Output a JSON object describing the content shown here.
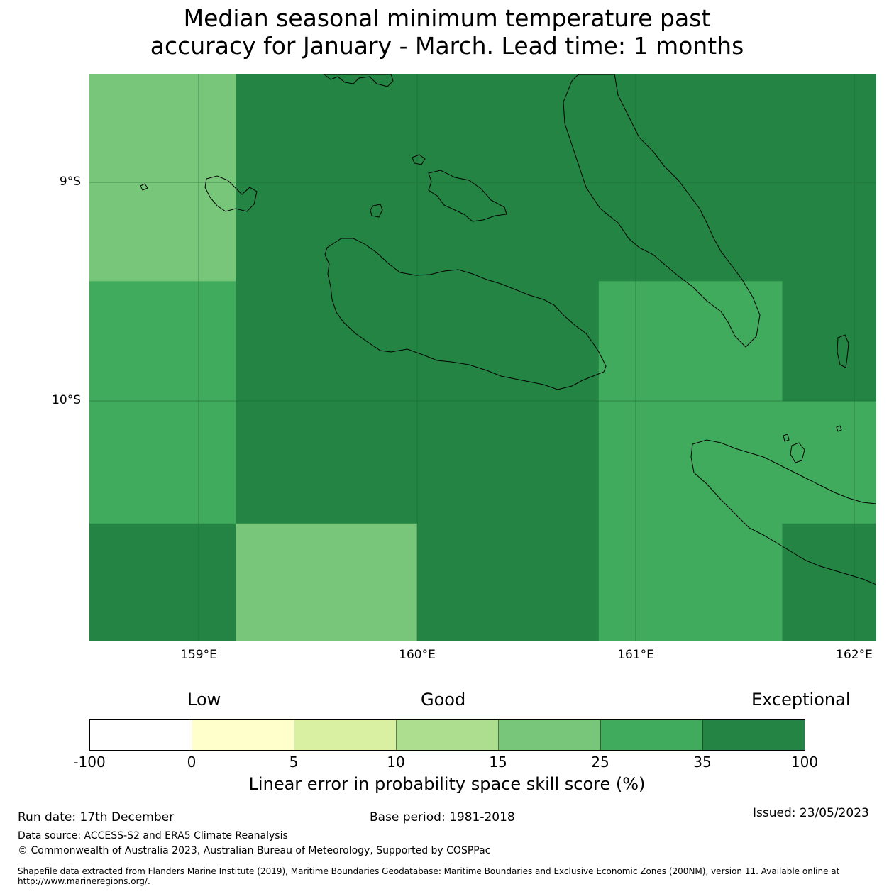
{
  "title": {
    "line1": "Median seasonal minimum temperature past",
    "line2": "accuracy for January - March. Lead time: 1 months"
  },
  "map": {
    "lat_labels": [
      "9°S",
      "10°S"
    ],
    "lon_labels": [
      "159°E",
      "160°E",
      "161°E",
      "162°E"
    ],
    "lon_range": [
      158.5,
      162.1
    ],
    "lat_range": [
      -8.5,
      -11.1
    ],
    "cells": [
      {
        "lon0": 158.5,
        "lon1": 159.17,
        "lat0": -8.5,
        "lat1": -9.45,
        "cls": "15-25"
      },
      {
        "lon0": 158.5,
        "lon1": 159.17,
        "lat0": -9.45,
        "lat1": -10.56,
        "cls": "25-35"
      },
      {
        "lon0": 158.5,
        "lon1": 159.17,
        "lat0": -10.56,
        "lat1": -11.1,
        "cls": "35-100"
      },
      {
        "lon0": 159.17,
        "lon1": 160.83,
        "lat0": -8.5,
        "lat1": -10.56,
        "cls": "35-100"
      },
      {
        "lon0": 159.17,
        "lon1": 160.0,
        "lat0": -10.56,
        "lat1": -11.1,
        "cls": "15-25"
      },
      {
        "lon0": 160.0,
        "lon1": 160.83,
        "lat0": -10.56,
        "lat1": -11.1,
        "cls": "35-100"
      },
      {
        "lon0": 160.83,
        "lon1": 162.1,
        "lat0": -8.5,
        "lat1": -9.45,
        "cls": "35-100"
      },
      {
        "lon0": 160.83,
        "lon1": 161.67,
        "lat0": -9.45,
        "lat1": -11.1,
        "cls": "25-35"
      },
      {
        "lon0": 161.67,
        "lon1": 162.1,
        "lat0": -9.45,
        "lat1": -10.0,
        "cls": "35-100"
      },
      {
        "lon0": 161.67,
        "lon1": 162.1,
        "lat0": -10.0,
        "lat1": -10.56,
        "cls": "25-35"
      },
      {
        "lon0": 161.67,
        "lon1": 162.1,
        "lat0": -10.56,
        "lat1": -11.1,
        "cls": "35-100"
      }
    ]
  },
  "legend": {
    "categories": [
      "Low",
      "Good",
      "Exceptional"
    ],
    "ticks": [
      "-100",
      "0",
      "5",
      "10",
      "15",
      "25",
      "35",
      "100"
    ],
    "bins": [
      {
        "range": "-100-0",
        "color": "#ffffff"
      },
      {
        "range": "0-5",
        "color": "#ffffcc"
      },
      {
        "range": "5-10",
        "color": "#d9f0a3"
      },
      {
        "range": "10-15",
        "color": "#addd8e"
      },
      {
        "range": "15-25",
        "color": "#78c679"
      },
      {
        "range": "25-35",
        "color": "#41ab5d"
      },
      {
        "range": "35-100",
        "color": "#238443"
      }
    ],
    "title": "Linear error in probability space skill score (%)"
  },
  "footer": {
    "run_date": "Run date: 17th December",
    "base_period": "Base period: 1981-2018",
    "issued": "Issued: 23/05/2023",
    "data_source": "Data source: ACCESS-S2 and ERA5 Climate Reanalysis",
    "copyright": "© Commonwealth of Australia 2023, Australian Bureau of Meteorology, Supported by COSPPac",
    "shapefile_line1": "Shapefile data extracted from Flanders Marine Institute (2019), Maritime Boundaries Geodatabase: Maritime Boundaries and Exclusive Economic Zones (200NM), version 11. Available online at",
    "shapefile_line2": "http://www.marineregions.org/."
  }
}
